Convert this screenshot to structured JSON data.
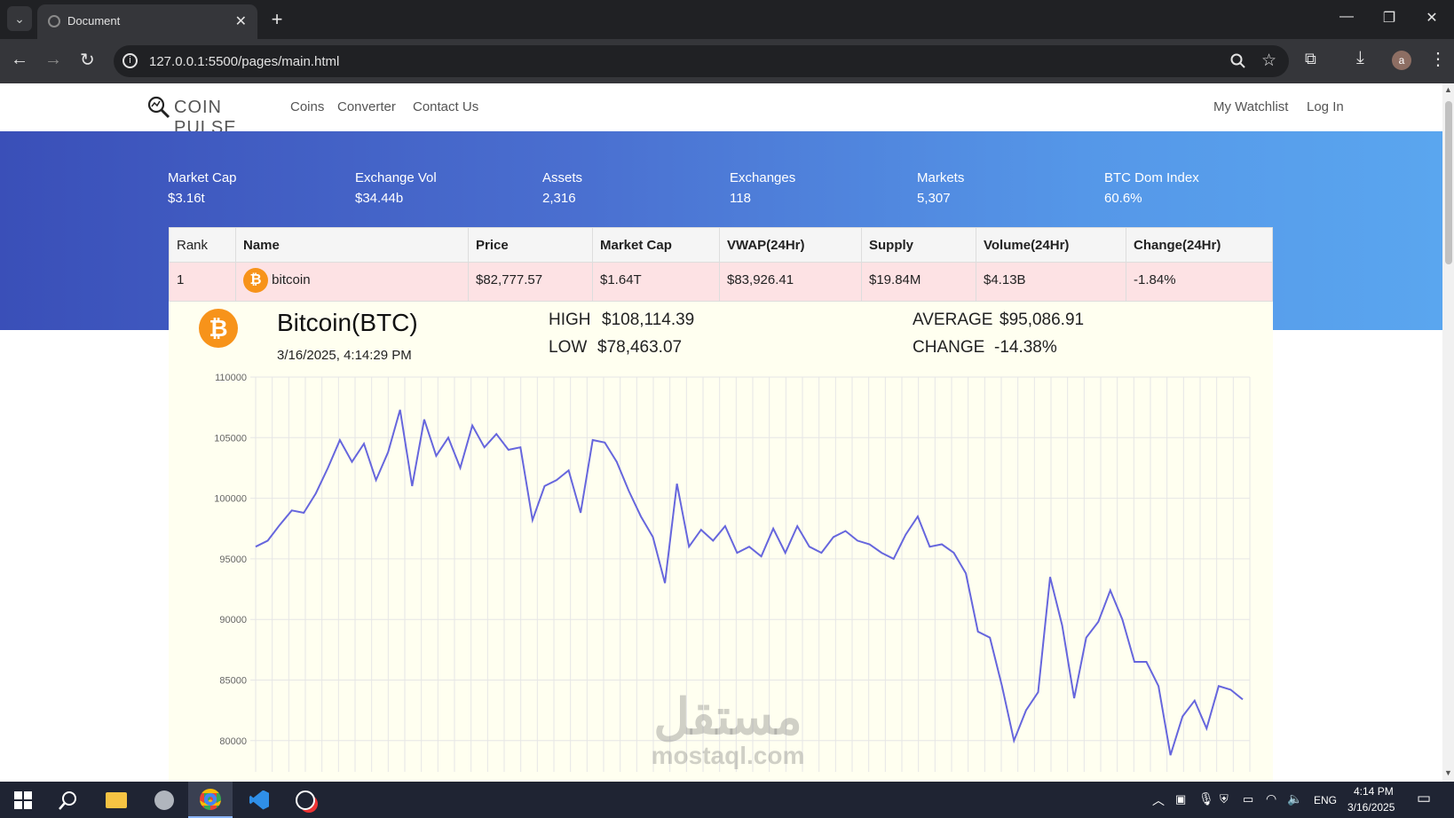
{
  "browser": {
    "tab_title": "Document",
    "url": "127.0.0.1:5500/pages/main.html",
    "profile_initial": "a"
  },
  "nav": {
    "logo_text": "COIN PULSE",
    "links": [
      "Coins",
      "Converter",
      "Contact Us"
    ],
    "right_links": [
      "My Watchlist",
      "Log In"
    ]
  },
  "stats": [
    {
      "label": "Market Cap",
      "value": "$3.16t"
    },
    {
      "label": "Exchange Vol",
      "value": "$34.44b"
    },
    {
      "label": "Assets",
      "value": "2,316"
    },
    {
      "label": "Exchanges",
      "value": "118"
    },
    {
      "label": "Markets",
      "value": "5,307"
    },
    {
      "label": "BTC Dom Index",
      "value": "60.6%"
    }
  ],
  "table": {
    "headers": [
      "Rank",
      "Name",
      "Price",
      "Market Cap",
      "VWAP(24Hr)",
      "Supply",
      "Volume(24Hr)",
      "Change(24Hr)"
    ],
    "row": [
      "1",
      "bitcoin",
      "$82,777.57",
      "$1.64T",
      "$83,926.41",
      "$19.84M",
      "$4.13B",
      "-1.84%"
    ]
  },
  "detail": {
    "title": "Bitcoin(BTC)",
    "timestamp": "3/16/2025, 4:14:29 PM",
    "high_label": "HIGH",
    "high_value": "$108,114.39",
    "low_label": "LOW",
    "low_value": "$78,463.07",
    "avg_label": "AVERAGE",
    "avg_value": "$95,086.91",
    "change_label": "CHANGE",
    "change_value": "-14.38%"
  },
  "colors": {
    "bitcoin_orange": "#f7931a",
    "line": "#6666dd",
    "row_highlight": "#fde2e4"
  },
  "chart_data": {
    "type": "line",
    "ylim": [
      78463,
      110000
    ],
    "yticks": [
      110000,
      105000,
      100000,
      95000,
      90000,
      85000,
      80000
    ],
    "grid": true,
    "series": [
      {
        "values": [
          96000,
          96500,
          97800,
          99000,
          98800,
          100400,
          102500,
          104800,
          103000,
          104500,
          101500,
          103800,
          107300,
          101000,
          106500,
          103500,
          105000,
          102500,
          106000,
          104200,
          105300,
          104000,
          104200,
          98200,
          101000,
          101500,
          102300,
          98800,
          104800,
          104600,
          103000,
          100600,
          98500,
          96800,
          93000,
          101200,
          96000,
          97400,
          96500,
          97700,
          95500,
          96000,
          95200,
          97500,
          95500,
          97700,
          96000,
          95500,
          96800,
          97300,
          96500,
          96200,
          95500,
          95000,
          97000,
          98500,
          96000,
          96200,
          95500,
          93800,
          89000,
          88500,
          84500,
          80000,
          82500,
          84000,
          93500,
          89500,
          83500,
          88500,
          89800,
          92400,
          90000,
          86500,
          86500,
          84500,
          78800,
          82000,
          83300,
          81000,
          84500,
          84200,
          83400
        ]
      }
    ],
    "series_x_count": 83
  },
  "taskbar": {
    "lang": "ENG",
    "time": "4:14 PM",
    "date": "3/16/2025"
  },
  "watermark": {
    "arabic": "مستقل",
    "latin": "mostaql.com"
  }
}
